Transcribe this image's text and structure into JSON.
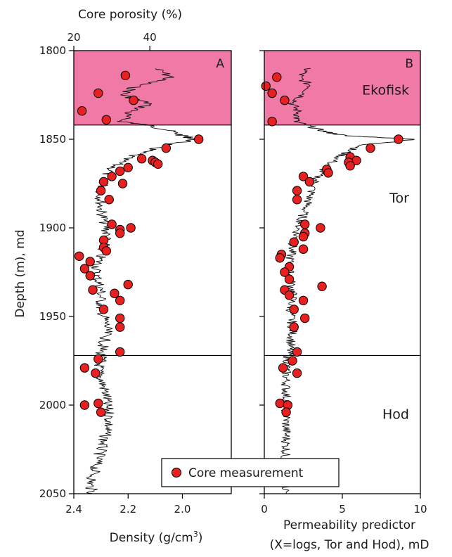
{
  "chart_data": [
    {
      "panel_label": "A",
      "type": "scatter",
      "xlabel": "Density (g/cm3)",
      "xlabel_text": "Density (g/cm",
      "xlabel_sup": "3",
      "xlabel_close": ")",
      "xlim": [
        2.4,
        1.82
      ],
      "x_ticks": [
        2.4,
        2.2,
        2.0
      ],
      "x_tick_labels": [
        "2.4",
        "2.2",
        "2.0"
      ],
      "top_axis_label": "Core porosity (%)",
      "top_ticks": [
        20,
        40
      ],
      "top_tick_labels": [
        "20",
        "40"
      ],
      "top_axis_porosity_at_density": [
        [
          20,
          2.4
        ],
        [
          40,
          2.12
        ]
      ],
      "ylabel": "Depth (m), md",
      "ylim": [
        1800,
        2050
      ],
      "y_ticks": [
        1800,
        1850,
        1900,
        1950,
        2000,
        2050
      ],
      "y_tick_labels": [
        "1800",
        "1850",
        "1900",
        "1950",
        "2000",
        "2050"
      ],
      "invert_y": true,
      "shaded_interval": {
        "top": 1800,
        "base": 1842,
        "color": "#f07aa5"
      },
      "formation_boundaries": [
        1842,
        1972
      ],
      "log_curve_nodes": [
        [
          1810,
          2.1
        ],
        [
          1815,
          2.04
        ],
        [
          1820,
          2.17
        ],
        [
          1825,
          2.22
        ],
        [
          1830,
          2.12
        ],
        [
          1835,
          2.2
        ],
        [
          1840,
          2.22
        ],
        [
          1842,
          2.13
        ],
        [
          1845,
          2.05
        ],
        [
          1848,
          2.0
        ],
        [
          1850,
          1.95
        ],
        [
          1853,
          2.05
        ],
        [
          1856,
          2.12
        ],
        [
          1860,
          2.2
        ],
        [
          1865,
          2.25
        ],
        [
          1870,
          2.28
        ],
        [
          1875,
          2.29
        ],
        [
          1880,
          2.3
        ],
        [
          1885,
          2.3
        ],
        [
          1890,
          2.3
        ],
        [
          1895,
          2.29
        ],
        [
          1900,
          2.28
        ],
        [
          1905,
          2.28
        ],
        [
          1910,
          2.29
        ],
        [
          1915,
          2.3
        ],
        [
          1920,
          2.31
        ],
        [
          1925,
          2.32
        ],
        [
          1930,
          2.31
        ],
        [
          1935,
          2.3
        ],
        [
          1940,
          2.3
        ],
        [
          1945,
          2.3
        ],
        [
          1950,
          2.29
        ],
        [
          1955,
          2.28
        ],
        [
          1960,
          2.28
        ],
        [
          1965,
          2.29
        ],
        [
          1970,
          2.3
        ],
        [
          1975,
          2.3
        ],
        [
          1980,
          2.31
        ],
        [
          1985,
          2.3
        ],
        [
          1990,
          2.29
        ],
        [
          1995,
          2.28
        ],
        [
          2000,
          2.28
        ],
        [
          2005,
          2.27
        ],
        [
          2010,
          2.27
        ],
        [
          2015,
          2.28
        ],
        [
          2020,
          2.29
        ],
        [
          2025,
          2.3
        ],
        [
          2030,
          2.31
        ],
        [
          2035,
          2.32
        ],
        [
          2040,
          2.33
        ],
        [
          2045,
          2.34
        ],
        [
          2050,
          2.33
        ]
      ],
      "points": [
        [
          1814,
          2.21
        ],
        [
          1824,
          2.31
        ],
        [
          1828,
          2.18
        ],
        [
          1834,
          2.37
        ],
        [
          1839,
          2.28
        ],
        [
          1850,
          1.94
        ],
        [
          1855,
          2.06
        ],
        [
          1861,
          2.15
        ],
        [
          1862,
          2.11
        ],
        [
          1863,
          2.1
        ],
        [
          1864,
          2.09
        ],
        [
          1866,
          2.2
        ],
        [
          1868,
          2.23
        ],
        [
          1871,
          2.26
        ],
        [
          1874,
          2.29
        ],
        [
          1875,
          2.22
        ],
        [
          1879,
          2.3
        ],
        [
          1884,
          2.27
        ],
        [
          1898,
          2.26
        ],
        [
          1900,
          2.19
        ],
        [
          1901,
          2.23
        ],
        [
          1903,
          2.23
        ],
        [
          1907,
          2.29
        ],
        [
          1911,
          2.29
        ],
        [
          1913,
          2.28
        ],
        [
          1916,
          2.38
        ],
        [
          1919,
          2.34
        ],
        [
          1923,
          2.36
        ],
        [
          1927,
          2.34
        ],
        [
          1932,
          2.2
        ],
        [
          1935,
          2.33
        ],
        [
          1937,
          2.25
        ],
        [
          1941,
          2.23
        ],
        [
          1946,
          2.29
        ],
        [
          1951,
          2.23
        ],
        [
          1956,
          2.23
        ],
        [
          1970,
          2.23
        ],
        [
          1974,
          2.31
        ],
        [
          1979,
          2.36
        ],
        [
          1982,
          2.32
        ],
        [
          1999,
          2.31
        ],
        [
          2000,
          2.36
        ],
        [
          2004,
          2.3
        ]
      ]
    },
    {
      "panel_label": "B",
      "type": "scatter",
      "xlabel": "Permeability predictor",
      "xlabel_line2": "(X=logs, Tor and Hod), mD",
      "xlim": [
        0,
        10
      ],
      "x_ticks": [
        0,
        5,
        10
      ],
      "x_tick_labels": [
        "0",
        "5",
        "10"
      ],
      "ylim": [
        1800,
        2050
      ],
      "invert_y": true,
      "shaded_interval": {
        "top": 1800,
        "base": 1842,
        "color": "#f07aa5"
      },
      "formation_boundaries": [
        1842,
        1972
      ],
      "formations": [
        {
          "name": "Ekofisk",
          "depth": 1822
        },
        {
          "name": "Tor",
          "depth": 1883
        },
        {
          "name": "Hod",
          "depth": 2005
        }
      ],
      "log_curve_nodes": [
        [
          1810,
          2.8
        ],
        [
          1815,
          2.2
        ],
        [
          1820,
          3.0
        ],
        [
          1825,
          2.5
        ],
        [
          1830,
          1.8
        ],
        [
          1835,
          2.2
        ],
        [
          1840,
          2.0
        ],
        [
          1843,
          3.0
        ],
        [
          1846,
          4.0
        ],
        [
          1848,
          5.2
        ],
        [
          1850,
          9.8
        ],
        [
          1853,
          6.5
        ],
        [
          1856,
          5.5
        ],
        [
          1860,
          4.8
        ],
        [
          1865,
          4.0
        ],
        [
          1870,
          3.5
        ],
        [
          1875,
          3.2
        ],
        [
          1880,
          3.0
        ],
        [
          1885,
          2.8
        ],
        [
          1890,
          2.6
        ],
        [
          1895,
          2.4
        ],
        [
          1900,
          2.2
        ],
        [
          1905,
          2.0
        ],
        [
          1910,
          1.8
        ],
        [
          1915,
          1.7
        ],
        [
          1920,
          1.6
        ],
        [
          1925,
          1.6
        ],
        [
          1930,
          1.7
        ],
        [
          1935,
          1.8
        ],
        [
          1940,
          1.8
        ],
        [
          1945,
          1.7
        ],
        [
          1950,
          1.7
        ],
        [
          1955,
          1.8
        ],
        [
          1960,
          1.8
        ],
        [
          1965,
          1.7
        ],
        [
          1970,
          1.6
        ],
        [
          1975,
          1.5
        ],
        [
          1980,
          1.4
        ],
        [
          1985,
          1.4
        ],
        [
          1990,
          1.4
        ],
        [
          1995,
          1.4
        ],
        [
          2000,
          1.4
        ],
        [
          2005,
          1.4
        ],
        [
          2010,
          1.4
        ],
        [
          2015,
          1.4
        ],
        [
          2020,
          1.4
        ],
        [
          2025,
          1.4
        ],
        [
          2030,
          1.3
        ],
        [
          2035,
          1.3
        ],
        [
          2040,
          1.3
        ],
        [
          2045,
          1.4
        ],
        [
          2050,
          1.4
        ]
      ],
      "points": [
        [
          1815,
          0.8
        ],
        [
          1820,
          0.1
        ],
        [
          1824,
          0.5
        ],
        [
          1828,
          1.3
        ],
        [
          1840,
          0.5
        ],
        [
          1850,
          8.6
        ],
        [
          1855,
          6.8
        ],
        [
          1860,
          5.5
        ],
        [
          1862,
          5.9
        ],
        [
          1863,
          5.4
        ],
        [
          1865,
          5.5
        ],
        [
          1867,
          4.0
        ],
        [
          1869,
          4.1
        ],
        [
          1871,
          2.5
        ],
        [
          1874,
          2.9
        ],
        [
          1879,
          2.1
        ],
        [
          1884,
          2.1
        ],
        [
          1898,
          2.6
        ],
        [
          1900,
          3.6
        ],
        [
          1903,
          2.6
        ],
        [
          1905,
          2.5
        ],
        [
          1908,
          1.9
        ],
        [
          1912,
          2.5
        ],
        [
          1915,
          1.1
        ],
        [
          1917,
          1.0
        ],
        [
          1922,
          1.6
        ],
        [
          1925,
          1.3
        ],
        [
          1929,
          1.6
        ],
        [
          1933,
          3.7
        ],
        [
          1935,
          1.3
        ],
        [
          1938,
          1.6
        ],
        [
          1941,
          2.5
        ],
        [
          1946,
          1.9
        ],
        [
          1951,
          2.6
        ],
        [
          1956,
          1.9
        ],
        [
          1970,
          2.1
        ],
        [
          1975,
          1.8
        ],
        [
          1979,
          1.2
        ],
        [
          1982,
          2.1
        ],
        [
          1999,
          1.0
        ],
        [
          2000,
          1.5
        ],
        [
          2004,
          1.4
        ]
      ]
    }
  ],
  "legend": {
    "label": "Core measurement",
    "marker_color": "#e8201f"
  },
  "colors": {
    "core_point": "#e8201f",
    "ekofisk_fill": "#f07aa5",
    "log_line": "#111111"
  }
}
